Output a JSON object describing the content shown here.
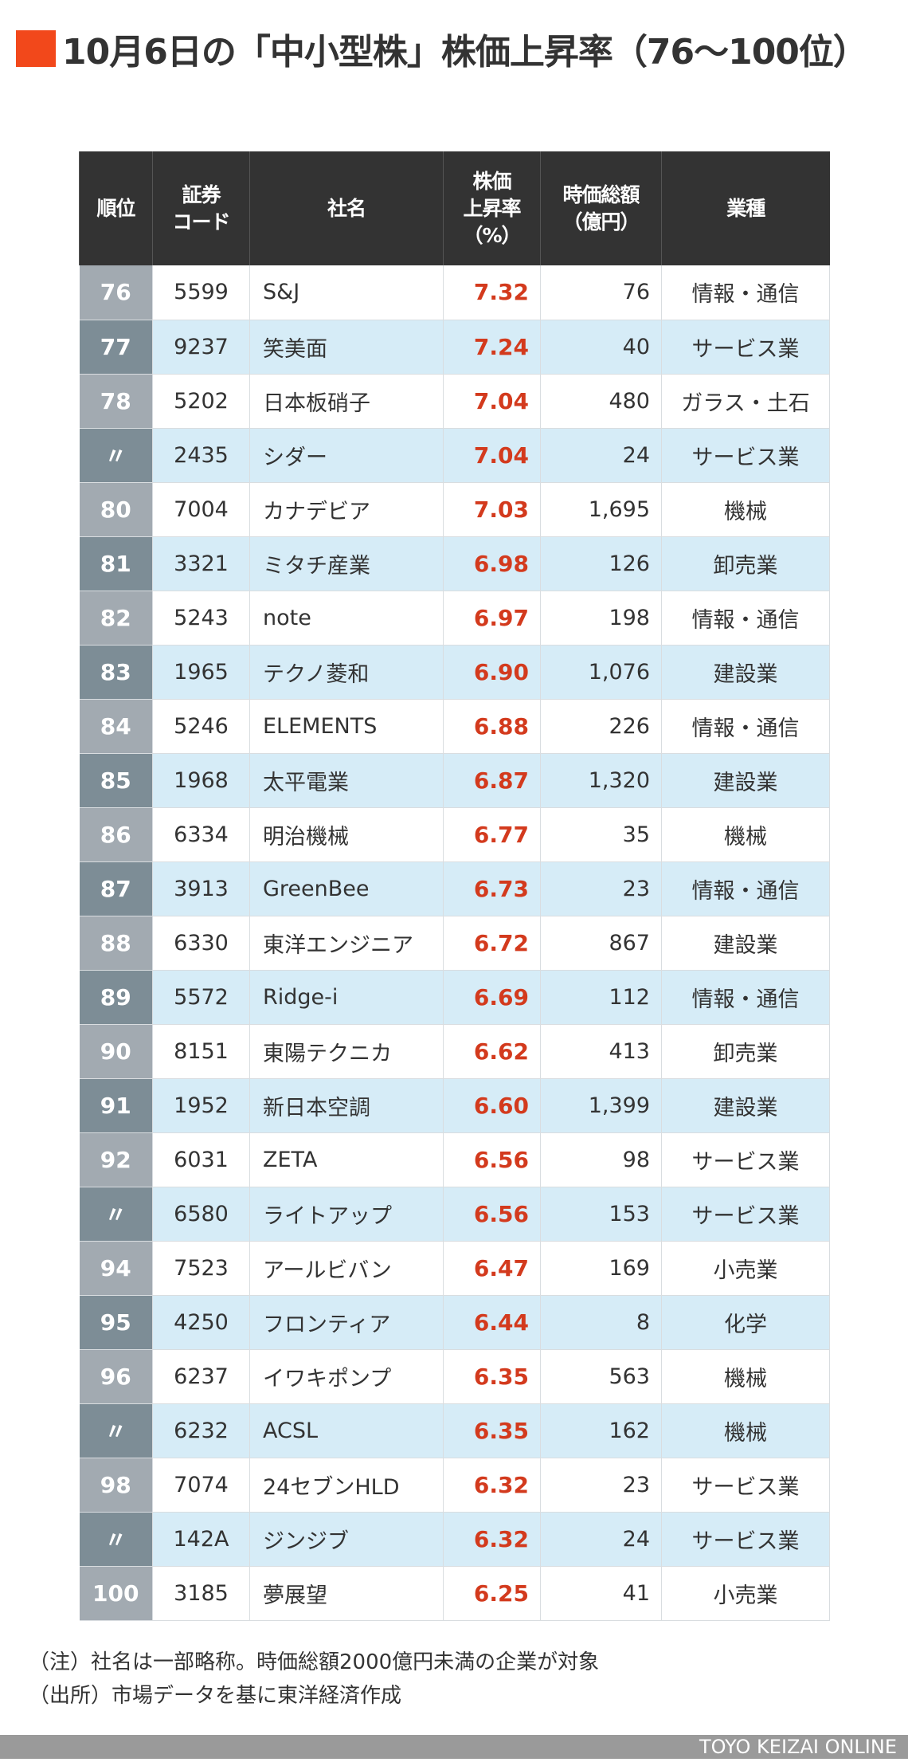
{
  "title": "10月6日の「中小型株」株価上昇率（76〜100位）",
  "colors": {
    "accent": "#f2481b",
    "header_bg": "#333333",
    "rate_red": "#d33a1d",
    "row_alt": "#d6ecf7",
    "rank_light": "#a2aab1",
    "rank_dark": "#7d8d96"
  },
  "table": {
    "headers": [
      "順位",
      "証券コード",
      "社名",
      "株価上昇率（%）",
      "時価総額（億円）",
      "業種"
    ],
    "header_lines": {
      "rank": [
        "順位"
      ],
      "code": [
        "証券",
        "コード"
      ],
      "name": [
        "社名"
      ],
      "rate": [
        "株価",
        "上昇率",
        "（%）"
      ],
      "cap": [
        "時価総額",
        "（億円）"
      ],
      "industry": [
        "業種"
      ]
    },
    "rows": [
      {
        "rank": "76",
        "code": "5599",
        "name": "S&J",
        "rate": "7.32",
        "cap": "76",
        "industry": "情報・通信"
      },
      {
        "rank": "77",
        "code": "9237",
        "name": "笑美面",
        "rate": "7.24",
        "cap": "40",
        "industry": "サービス業"
      },
      {
        "rank": "78",
        "code": "5202",
        "name": "日本板硝子",
        "rate": "7.04",
        "cap": "480",
        "industry": "ガラス・土石"
      },
      {
        "rank": "〃",
        "code": "2435",
        "name": "シダー",
        "rate": "7.04",
        "cap": "24",
        "industry": "サービス業"
      },
      {
        "rank": "80",
        "code": "7004",
        "name": "カナデビア",
        "rate": "7.03",
        "cap": "1,695",
        "industry": "機械"
      },
      {
        "rank": "81",
        "code": "3321",
        "name": "ミタチ産業",
        "rate": "6.98",
        "cap": "126",
        "industry": "卸売業"
      },
      {
        "rank": "82",
        "code": "5243",
        "name": "note",
        "rate": "6.97",
        "cap": "198",
        "industry": "情報・通信"
      },
      {
        "rank": "83",
        "code": "1965",
        "name": "テクノ菱和",
        "rate": "6.90",
        "cap": "1,076",
        "industry": "建設業"
      },
      {
        "rank": "84",
        "code": "5246",
        "name": "ELEMENTS",
        "rate": "6.88",
        "cap": "226",
        "industry": "情報・通信"
      },
      {
        "rank": "85",
        "code": "1968",
        "name": "太平電業",
        "rate": "6.87",
        "cap": "1,320",
        "industry": "建設業"
      },
      {
        "rank": "86",
        "code": "6334",
        "name": "明治機械",
        "rate": "6.77",
        "cap": "35",
        "industry": "機械"
      },
      {
        "rank": "87",
        "code": "3913",
        "name": "GreenBee",
        "rate": "6.73",
        "cap": "23",
        "industry": "情報・通信"
      },
      {
        "rank": "88",
        "code": "6330",
        "name": "東洋エンジニア",
        "rate": "6.72",
        "cap": "867",
        "industry": "建設業"
      },
      {
        "rank": "89",
        "code": "5572",
        "name": "Ridge-i",
        "rate": "6.69",
        "cap": "112",
        "industry": "情報・通信"
      },
      {
        "rank": "90",
        "code": "8151",
        "name": "東陽テクニカ",
        "rate": "6.62",
        "cap": "413",
        "industry": "卸売業"
      },
      {
        "rank": "91",
        "code": "1952",
        "name": "新日本空調",
        "rate": "6.60",
        "cap": "1,399",
        "industry": "建設業"
      },
      {
        "rank": "92",
        "code": "6031",
        "name": "ZETA",
        "rate": "6.56",
        "cap": "98",
        "industry": "サービス業"
      },
      {
        "rank": "〃",
        "code": "6580",
        "name": "ライトアップ",
        "rate": "6.56",
        "cap": "153",
        "industry": "サービス業"
      },
      {
        "rank": "94",
        "code": "7523",
        "name": "アールビバン",
        "rate": "6.47",
        "cap": "169",
        "industry": "小売業"
      },
      {
        "rank": "95",
        "code": "4250",
        "name": "フロンティア",
        "rate": "6.44",
        "cap": "8",
        "industry": "化学"
      },
      {
        "rank": "96",
        "code": "6237",
        "name": "イワキポンプ",
        "rate": "6.35",
        "cap": "563",
        "industry": "機械"
      },
      {
        "rank": "〃",
        "code": "6232",
        "name": "ACSL",
        "rate": "6.35",
        "cap": "162",
        "industry": "機械"
      },
      {
        "rank": "98",
        "code": "7074",
        "name": "24セブンHLD",
        "rate": "6.32",
        "cap": "23",
        "industry": "サービス業"
      },
      {
        "rank": "〃",
        "code": "142A",
        "name": "ジンジブ",
        "rate": "6.32",
        "cap": "24",
        "industry": "サービス業"
      },
      {
        "rank": "100",
        "code": "3185",
        "name": "夢展望",
        "rate": "6.25",
        "cap": "41",
        "industry": "小売業"
      }
    ]
  },
  "notes": {
    "note": "（注）社名は一部略称。時価総額2000億円未満の企業が対象",
    "source": "（出所）市場データを基に東洋経済作成"
  },
  "footer": {
    "brand": "TOYO KEIZAI ONLINE"
  }
}
